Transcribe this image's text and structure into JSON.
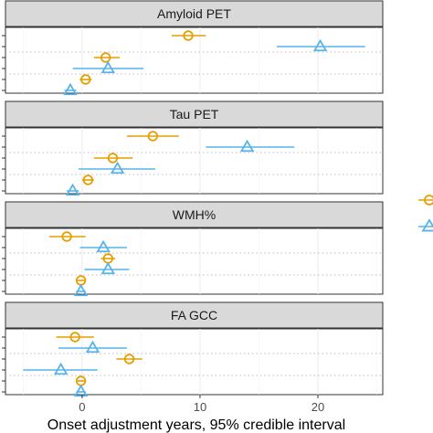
{
  "chart_data": {
    "type": "scatter",
    "subtype": "forest-plot",
    "xlabel": "Onset adjustment years, 95% credible interval",
    "x_ticks": [
      0,
      10,
      20
    ],
    "xlim": [
      -6.5,
      25.5
    ],
    "grid": true,
    "legend": "right (partially cropped, labels not visible)",
    "colors": {
      "circle_series": "#E69F00",
      "triangle_series": "#56B4E9"
    },
    "series": [
      {
        "marker": "circle",
        "color": "#E69F00"
      },
      {
        "marker": "triangle",
        "color": "#56B4E9"
      }
    ],
    "panels": [
      {
        "title": "Amyloid PET",
        "rows": [
          {
            "marker": "circle",
            "x": 9.0,
            "lo": 7.6,
            "hi": 10.5
          },
          {
            "marker": "triangle",
            "x": 20.2,
            "lo": 16.5,
            "hi": 24.0
          },
          {
            "marker": "circle",
            "x": 2.0,
            "lo": 1.0,
            "hi": 3.2
          },
          {
            "marker": "triangle",
            "x": 2.2,
            "lo": -0.8,
            "hi": 5.2
          },
          {
            "marker": "circle",
            "x": 0.3,
            "lo": -0.2,
            "hi": 0.8
          },
          {
            "marker": "triangle",
            "x": -1.0,
            "lo": -1.5,
            "hi": -0.5
          }
        ]
      },
      {
        "title": "Tau PET",
        "rows": [
          {
            "marker": "circle",
            "x": 6.0,
            "lo": 3.8,
            "hi": 8.2
          },
          {
            "marker": "triangle",
            "x": 14.0,
            "lo": 10.5,
            "hi": 18.0
          },
          {
            "marker": "circle",
            "x": 2.6,
            "lo": 1.0,
            "hi": 4.3
          },
          {
            "marker": "triangle",
            "x": 3.0,
            "lo": -0.3,
            "hi": 6.2
          },
          {
            "marker": "circle",
            "x": 0.5,
            "lo": 0.0,
            "hi": 1.0
          },
          {
            "marker": "triangle",
            "x": -0.8,
            "lo": -1.3,
            "hi": -0.3
          }
        ]
      },
      {
        "title": "WMH%",
        "rows": [
          {
            "marker": "circle",
            "x": -1.3,
            "lo": -2.8,
            "hi": 0.3
          },
          {
            "marker": "triangle",
            "x": 1.8,
            "lo": -0.2,
            "hi": 3.8
          },
          {
            "marker": "circle",
            "x": 2.2,
            "lo": 1.6,
            "hi": 2.8
          },
          {
            "marker": "triangle",
            "x": 2.2,
            "lo": 0.2,
            "hi": 4.0
          },
          {
            "marker": "circle",
            "x": -0.1,
            "lo": -0.4,
            "hi": 0.2
          },
          {
            "marker": "triangle",
            "x": -0.1,
            "lo": -0.5,
            "hi": 0.3
          }
        ]
      },
      {
        "title": "FA GCC",
        "rows": [
          {
            "marker": "circle",
            "x": -0.6,
            "lo": -2.2,
            "hi": 1.0
          },
          {
            "marker": "triangle",
            "x": 0.9,
            "lo": -2.0,
            "hi": 3.8
          },
          {
            "marker": "circle",
            "x": 4.0,
            "lo": 2.9,
            "hi": 5.1
          },
          {
            "marker": "triangle",
            "x": -1.8,
            "lo": -5.0,
            "hi": 1.3
          },
          {
            "marker": "circle",
            "x": -0.1,
            "lo": -0.4,
            "hi": 0.2
          },
          {
            "marker": "triangle",
            "x": -0.1,
            "lo": -0.5,
            "hi": 0.3
          }
        ]
      }
    ]
  }
}
